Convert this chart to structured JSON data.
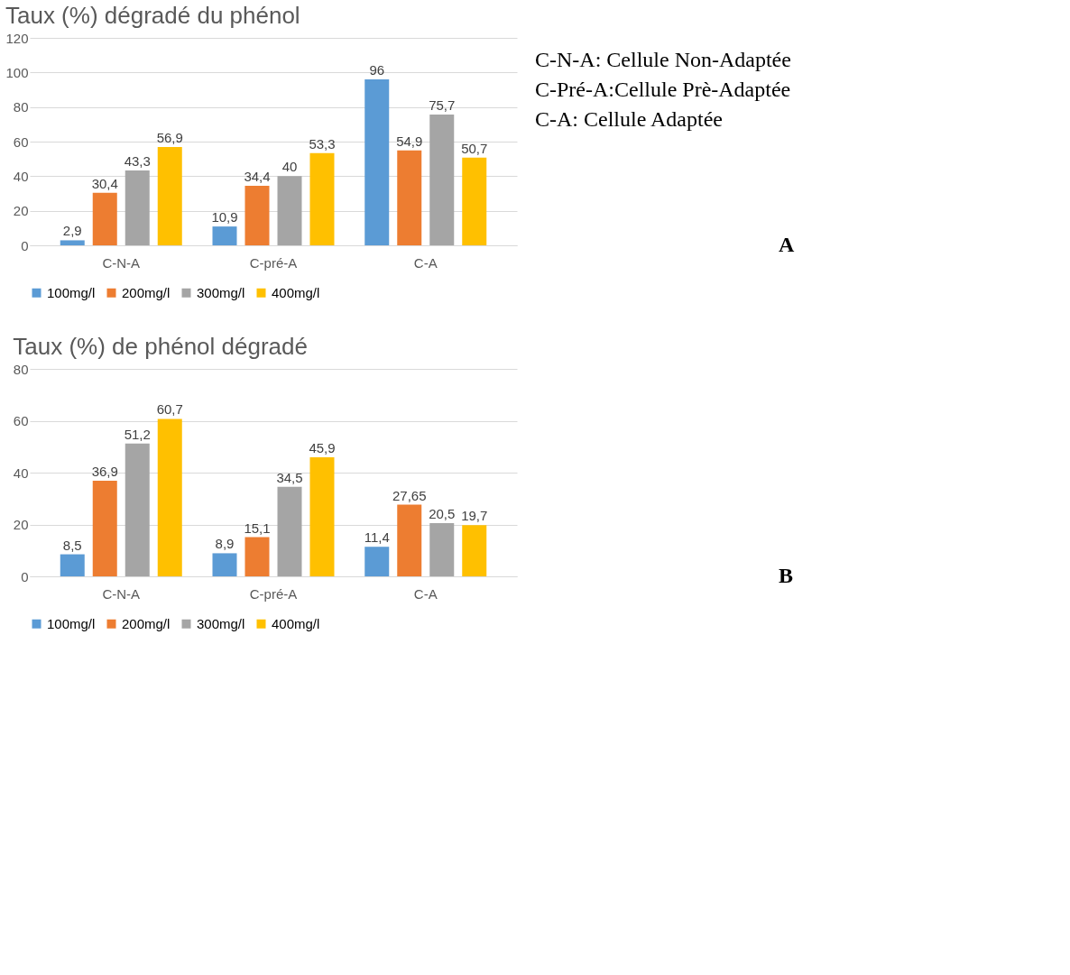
{
  "chart_data": [
    {
      "type": "bar",
      "title": "Taux (%) dégradé du phénol",
      "categories": [
        "C-N-A",
        "C-pré-A",
        "C-A"
      ],
      "series": [
        {
          "name": "100mg/l",
          "color": "#5b9bd5",
          "values": [
            2.9,
            10.9,
            96
          ],
          "value_labels": [
            "2,9",
            "10,9",
            "96"
          ]
        },
        {
          "name": "200mg/l",
          "color": "#ed7d31",
          "values": [
            30.4,
            34.4,
            54.9
          ],
          "value_labels": [
            "30,4",
            "34,4",
            "54,9"
          ]
        },
        {
          "name": "300mg/l",
          "color": "#a5a5a5",
          "values": [
            43.3,
            40,
            75.7
          ],
          "value_labels": [
            "43,3",
            "40",
            "75,7"
          ]
        },
        {
          "name": "400mg/l",
          "color": "#ffc000",
          "values": [
            56.9,
            53.3,
            50.7
          ],
          "value_labels": [
            "56,9",
            "53,3",
            "50,7"
          ]
        }
      ],
      "ylim": [
        0,
        120
      ],
      "yticks": [
        0,
        20,
        40,
        60,
        80,
        100,
        120
      ],
      "grid": "y",
      "legend": "bottom",
      "annotations": [
        "C-N-A: Cellule  Non-Adaptée",
        "C-Pré-A:Cellule Prè-Adaptée",
        "C-A: Cellule Adaptée",
        "A"
      ]
    },
    {
      "type": "bar",
      "title": "Taux (%) de phénol dégradé",
      "categories": [
        "C-N-A",
        "C-pré-A",
        "C-A"
      ],
      "series": [
        {
          "name": "100mg/l",
          "color": "#5b9bd5",
          "values": [
            8.5,
            8.9,
            11.4
          ],
          "value_labels": [
            "8,5",
            "8,9",
            "11,4"
          ]
        },
        {
          "name": "200mg/l",
          "color": "#ed7d31",
          "values": [
            36.9,
            15.1,
            27.65
          ],
          "value_labels": [
            "36,9",
            "15,1",
            "27,65"
          ]
        },
        {
          "name": "300mg/l",
          "color": "#a5a5a5",
          "values": [
            51.2,
            34.5,
            20.5
          ],
          "value_labels": [
            "51,2",
            "34,5",
            "20,5"
          ]
        },
        {
          "name": "400mg/l",
          "color": "#ffc000",
          "values": [
            60.7,
            45.9,
            19.7
          ],
          "value_labels": [
            "60,7",
            "45,9",
            "19,7"
          ]
        }
      ],
      "ylim": [
        0,
        80
      ],
      "yticks": [
        0,
        20,
        40,
        60,
        80
      ],
      "grid": "y",
      "legend": "bottom",
      "annotations": [
        "B"
      ]
    }
  ]
}
